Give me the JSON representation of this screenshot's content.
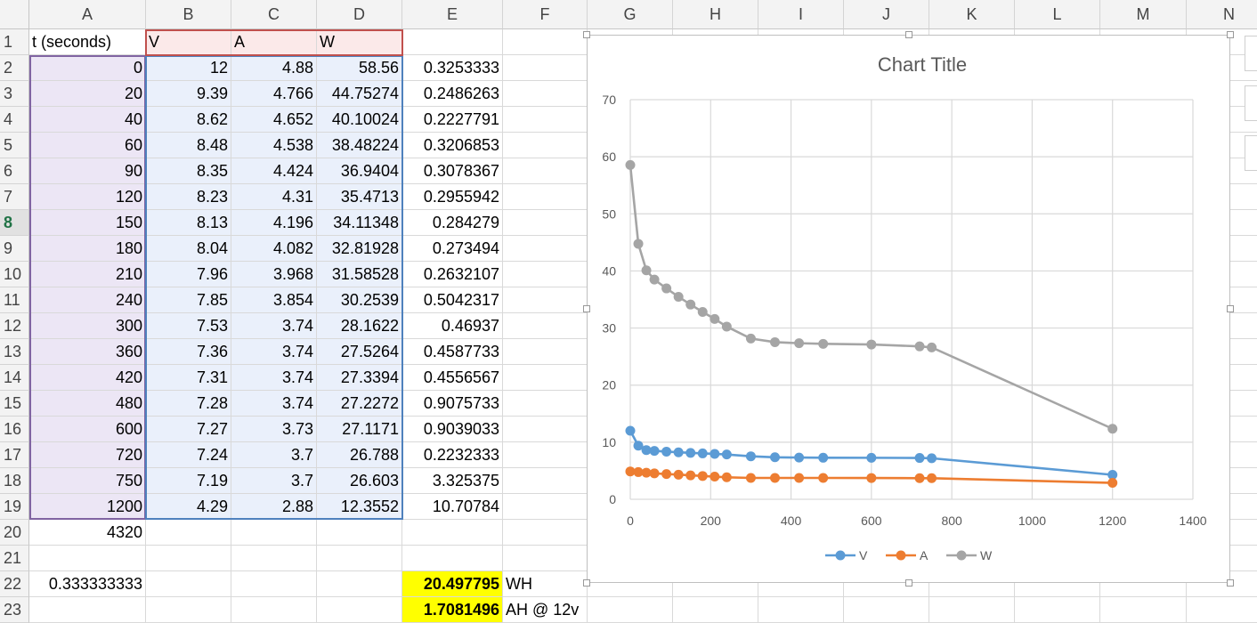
{
  "columns": [
    "A",
    "B",
    "C",
    "D",
    "E",
    "F",
    "G",
    "H",
    "I",
    "J",
    "K",
    "L",
    "M",
    "N"
  ],
  "rows": [
    {
      "n": "1",
      "a": "t (seconds)",
      "b": "V",
      "c": "A",
      "d": "W",
      "e": "",
      "f": ""
    },
    {
      "n": "2",
      "a": "0",
      "b": "12",
      "c": "4.88",
      "d": "58.56",
      "e": "0.3253333",
      "f": ""
    },
    {
      "n": "3",
      "a": "20",
      "b": "9.39",
      "c": "4.766",
      "d": "44.75274",
      "e": "0.2486263",
      "f": ""
    },
    {
      "n": "4",
      "a": "40",
      "b": "8.62",
      "c": "4.652",
      "d": "40.10024",
      "e": "0.2227791",
      "f": ""
    },
    {
      "n": "5",
      "a": "60",
      "b": "8.48",
      "c": "4.538",
      "d": "38.48224",
      "e": "0.3206853",
      "f": ""
    },
    {
      "n": "6",
      "a": "90",
      "b": "8.35",
      "c": "4.424",
      "d": "36.9404",
      "e": "0.3078367",
      "f": ""
    },
    {
      "n": "7",
      "a": "120",
      "b": "8.23",
      "c": "4.31",
      "d": "35.4713",
      "e": "0.2955942",
      "f": ""
    },
    {
      "n": "8",
      "a": "150",
      "b": "8.13",
      "c": "4.196",
      "d": "34.11348",
      "e": "0.284279",
      "f": ""
    },
    {
      "n": "9",
      "a": "180",
      "b": "8.04",
      "c": "4.082",
      "d": "32.81928",
      "e": "0.273494",
      "f": ""
    },
    {
      "n": "10",
      "a": "210",
      "b": "7.96",
      "c": "3.968",
      "d": "31.58528",
      "e": "0.2632107",
      "f": ""
    },
    {
      "n": "11",
      "a": "240",
      "b": "7.85",
      "c": "3.854",
      "d": "30.2539",
      "e": "0.5042317",
      "f": ""
    },
    {
      "n": "12",
      "a": "300",
      "b": "7.53",
      "c": "3.74",
      "d": "28.1622",
      "e": "0.46937",
      "f": ""
    },
    {
      "n": "13",
      "a": "360",
      "b": "7.36",
      "c": "3.74",
      "d": "27.5264",
      "e": "0.4587733",
      "f": ""
    },
    {
      "n": "14",
      "a": "420",
      "b": "7.31",
      "c": "3.74",
      "d": "27.3394",
      "e": "0.4556567",
      "f": ""
    },
    {
      "n": "15",
      "a": "480",
      "b": "7.28",
      "c": "3.74",
      "d": "27.2272",
      "e": "0.9075733",
      "f": ""
    },
    {
      "n": "16",
      "a": "600",
      "b": "7.27",
      "c": "3.73",
      "d": "27.1171",
      "e": "0.9039033",
      "f": ""
    },
    {
      "n": "17",
      "a": "720",
      "b": "7.24",
      "c": "3.7",
      "d": "26.788",
      "e": "0.2232333",
      "f": ""
    },
    {
      "n": "18",
      "a": "750",
      "b": "7.19",
      "c": "3.7",
      "d": "26.603",
      "e": "3.325375",
      "f": ""
    },
    {
      "n": "19",
      "a": "1200",
      "b": "4.29",
      "c": "2.88",
      "d": "12.3552",
      "e": "10.70784",
      "f": ""
    },
    {
      "n": "20",
      "a": "4320",
      "b": "",
      "c": "",
      "d": "",
      "e": "",
      "f": ""
    },
    {
      "n": "21",
      "a": "",
      "b": "",
      "c": "",
      "d": "",
      "e": "",
      "f": ""
    },
    {
      "n": "22",
      "a": "0.333333333",
      "b": "",
      "c": "",
      "d": "",
      "e": "20.497795",
      "f": "WH"
    },
    {
      "n": "23",
      "a": "",
      "b": "",
      "c": "",
      "d": "",
      "e": "1.7081496",
      "f": "AH @ 12v"
    }
  ],
  "active_row": "8",
  "colors": {
    "header_bg": "#f3f3f3",
    "grid": "#d9d9d9",
    "range_a": "#ece6f5",
    "range_bcd": "#eaf0fb",
    "range_header": "#fbe9e9",
    "highlight": "#ffff00",
    "series_v": "#5b9bd5",
    "series_a": "#ed7d31",
    "series_w": "#a5a5a5"
  },
  "chart_data": {
    "type": "scatter",
    "title": "Chart Title",
    "x": [
      0,
      20,
      40,
      60,
      90,
      120,
      150,
      180,
      210,
      240,
      300,
      360,
      420,
      480,
      600,
      720,
      750,
      1200
    ],
    "series": [
      {
        "name": "V",
        "color": "#5b9bd5",
        "values": [
          12,
          9.39,
          8.62,
          8.48,
          8.35,
          8.23,
          8.13,
          8.04,
          7.96,
          7.85,
          7.53,
          7.36,
          7.31,
          7.28,
          7.27,
          7.24,
          7.19,
          4.29
        ]
      },
      {
        "name": "A",
        "color": "#ed7d31",
        "values": [
          4.88,
          4.766,
          4.652,
          4.538,
          4.424,
          4.31,
          4.196,
          4.082,
          3.968,
          3.854,
          3.74,
          3.74,
          3.74,
          3.74,
          3.73,
          3.7,
          3.7,
          2.88
        ]
      },
      {
        "name": "W",
        "color": "#a5a5a5",
        "values": [
          58.56,
          44.75274,
          40.10024,
          38.48224,
          36.9404,
          35.4713,
          34.11348,
          32.81928,
          31.58528,
          30.2539,
          28.1622,
          27.5264,
          27.3394,
          27.2272,
          27.1171,
          26.788,
          26.603,
          12.3552
        ]
      }
    ],
    "xlim": [
      0,
      1400
    ],
    "ylim": [
      0,
      70
    ],
    "xticks": [
      "0",
      "200",
      "400",
      "600",
      "800",
      "1000",
      "1200",
      "1400"
    ],
    "yticks": [
      "0",
      "10",
      "20",
      "30",
      "40",
      "50",
      "60",
      "70"
    ],
    "grid": true,
    "legend": "bottom"
  }
}
